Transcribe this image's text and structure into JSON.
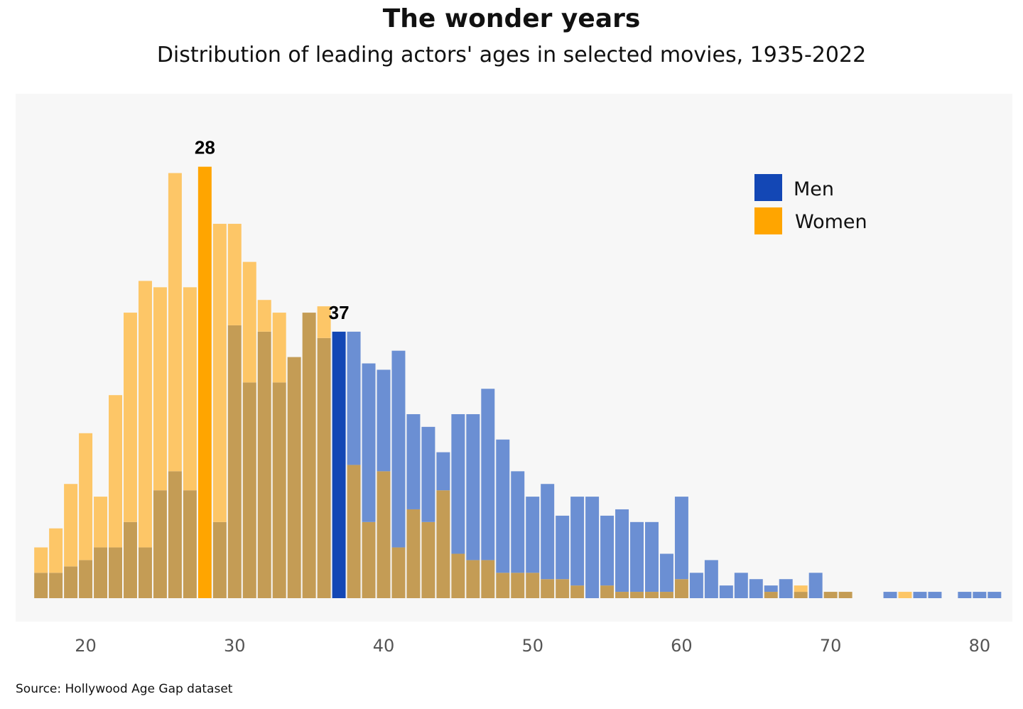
{
  "chart_data": {
    "type": "bar",
    "title": "The wonder years",
    "subtitle": "Distribution of leading actors' ages in selected movies, 1935-2022",
    "source": "Source: Hollywood Age Gap dataset",
    "xlabel": "",
    "ylabel": "",
    "x": [
      17,
      18,
      19,
      20,
      21,
      22,
      23,
      24,
      25,
      26,
      27,
      28,
      29,
      30,
      31,
      32,
      33,
      34,
      35,
      36,
      37,
      38,
      39,
      40,
      41,
      42,
      43,
      44,
      45,
      46,
      47,
      48,
      49,
      50,
      51,
      52,
      53,
      54,
      55,
      56,
      57,
      58,
      59,
      60,
      61,
      62,
      63,
      64,
      65,
      66,
      67,
      68,
      69,
      70,
      71,
      72,
      73,
      74,
      75,
      76,
      77,
      78,
      79,
      80,
      81
    ],
    "xlim": [
      15.3,
      82.2
    ],
    "xticks": [
      "20",
      "30",
      "40",
      "50",
      "60",
      "70",
      "80"
    ],
    "xtick_values": [
      20,
      30,
      40,
      50,
      60,
      70,
      80
    ],
    "ylim": [
      0,
      73
    ],
    "series": [
      {
        "name": "Men",
        "color": "#1347b5",
        "values": [
          4,
          4,
          5,
          6,
          8,
          8,
          12,
          8,
          17,
          20,
          17,
          23,
          12,
          43,
          34,
          42,
          34,
          38,
          45,
          41,
          42,
          42,
          37,
          36,
          39,
          29,
          27,
          23,
          29,
          29,
          33,
          25,
          20,
          16,
          18,
          13,
          16,
          16,
          13,
          14,
          12,
          12,
          7,
          16,
          4,
          6,
          2,
          4,
          3,
          2,
          3,
          1,
          4,
          1,
          1,
          0,
          0,
          1,
          0,
          1,
          1,
          0,
          1,
          1,
          1
        ]
      },
      {
        "name": "Women",
        "color": "#ffa500",
        "values": [
          8,
          11,
          18,
          26,
          16,
          32,
          45,
          50,
          49,
          67,
          49,
          68,
          59,
          59,
          53,
          47,
          45,
          38,
          45,
          46,
          33,
          21,
          12,
          20,
          8,
          14,
          12,
          17,
          7,
          6,
          6,
          4,
          4,
          4,
          3,
          3,
          2,
          0,
          2,
          1,
          1,
          1,
          1,
          3,
          0,
          0,
          0,
          0,
          0,
          1,
          0,
          2,
          0,
          1,
          1,
          0,
          0,
          0,
          1,
          0,
          0,
          0,
          0,
          0,
          0
        ]
      }
    ],
    "annotations": [
      {
        "label": "28",
        "x": 28,
        "series": "Women"
      },
      {
        "label": "37",
        "x": 37,
        "series": "Men"
      }
    ],
    "legend": {
      "position": "top-right",
      "entries": [
        "Men",
        "Women"
      ]
    },
    "grid": false,
    "plot_background": "#f7f7f7",
    "overlap_color": "#c49c55",
    "men_light_color": "#6b8fd3",
    "women_light_color": "#fdc667"
  }
}
